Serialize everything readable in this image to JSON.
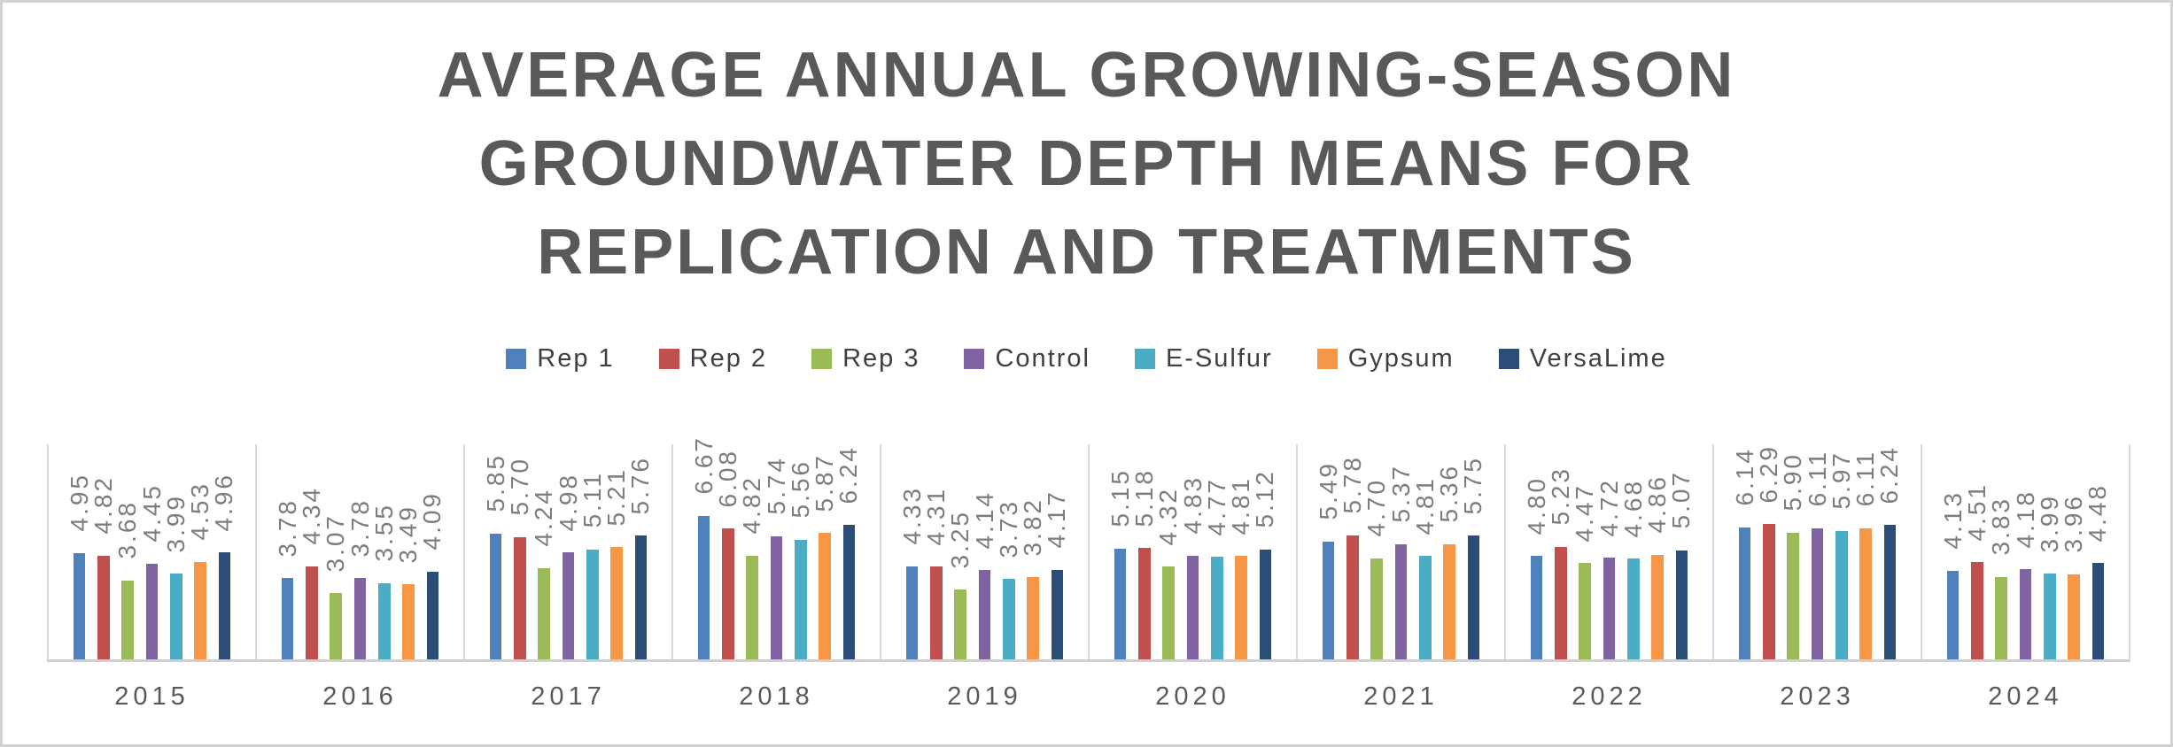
{
  "title": {
    "text": "AVERAGE ANNUAL GROWING-SEASON\nGROUNDWATER DEPTH MEANS FOR\nREPLICATION AND TREATMENTS"
  },
  "chart_data": {
    "type": "bar",
    "title": "AVERAGE ANNUAL GROWING-SEASON GROUNDWATER DEPTH MEANS FOR REPLICATION AND TREATMENTS",
    "categories": [
      "2015",
      "2016",
      "2017",
      "2018",
      "2019",
      "2020",
      "2021",
      "2022",
      "2023",
      "2024"
    ],
    "series": [
      {
        "name": "Rep 1",
        "color": "#4F81BD",
        "values": [
          4.95,
          3.78,
          5.85,
          6.67,
          4.33,
          5.15,
          5.49,
          4.8,
          6.14,
          4.13
        ]
      },
      {
        "name": "Rep 2",
        "color": "#C0504D",
        "values": [
          4.82,
          4.34,
          5.7,
          6.08,
          4.31,
          5.18,
          5.78,
          5.23,
          6.29,
          4.51
        ]
      },
      {
        "name": "Rep 3",
        "color": "#9BBB59",
        "values": [
          3.68,
          3.07,
          4.24,
          4.82,
          3.25,
          4.32,
          4.7,
          4.47,
          5.9,
          3.83
        ]
      },
      {
        "name": "Control",
        "color": "#8064A2",
        "values": [
          4.45,
          3.78,
          4.98,
          5.74,
          4.14,
          4.83,
          5.37,
          4.72,
          6.11,
          4.18
        ]
      },
      {
        "name": "E-Sulfur",
        "color": "#4BACC6",
        "values": [
          3.99,
          3.55,
          5.11,
          5.56,
          3.73,
          4.77,
          4.81,
          4.68,
          5.97,
          3.99
        ]
      },
      {
        "name": "Gypsum",
        "color": "#F79646",
        "values": [
          4.53,
          3.49,
          5.21,
          5.87,
          3.82,
          4.81,
          5.36,
          4.86,
          6.11,
          3.96
        ]
      },
      {
        "name": "VersaLime",
        "color": "#2C4D75",
        "values": [
          4.96,
          4.09,
          5.76,
          6.24,
          4.17,
          5.12,
          5.75,
          5.07,
          6.24,
          4.48
        ]
      }
    ],
    "xlabel": "",
    "ylabel": "",
    "ylim": [
      0,
      10
    ],
    "grid": "vertical-category-separators",
    "legend_position": "top",
    "value_label_format": "2-decimals-rotated-90",
    "value_label_color": "#7D7D7D",
    "axis_label_color": "#595959",
    "title_color": "#595959",
    "gridline_color": "#DADADA",
    "axis_line_color": "#CFCFCF"
  }
}
